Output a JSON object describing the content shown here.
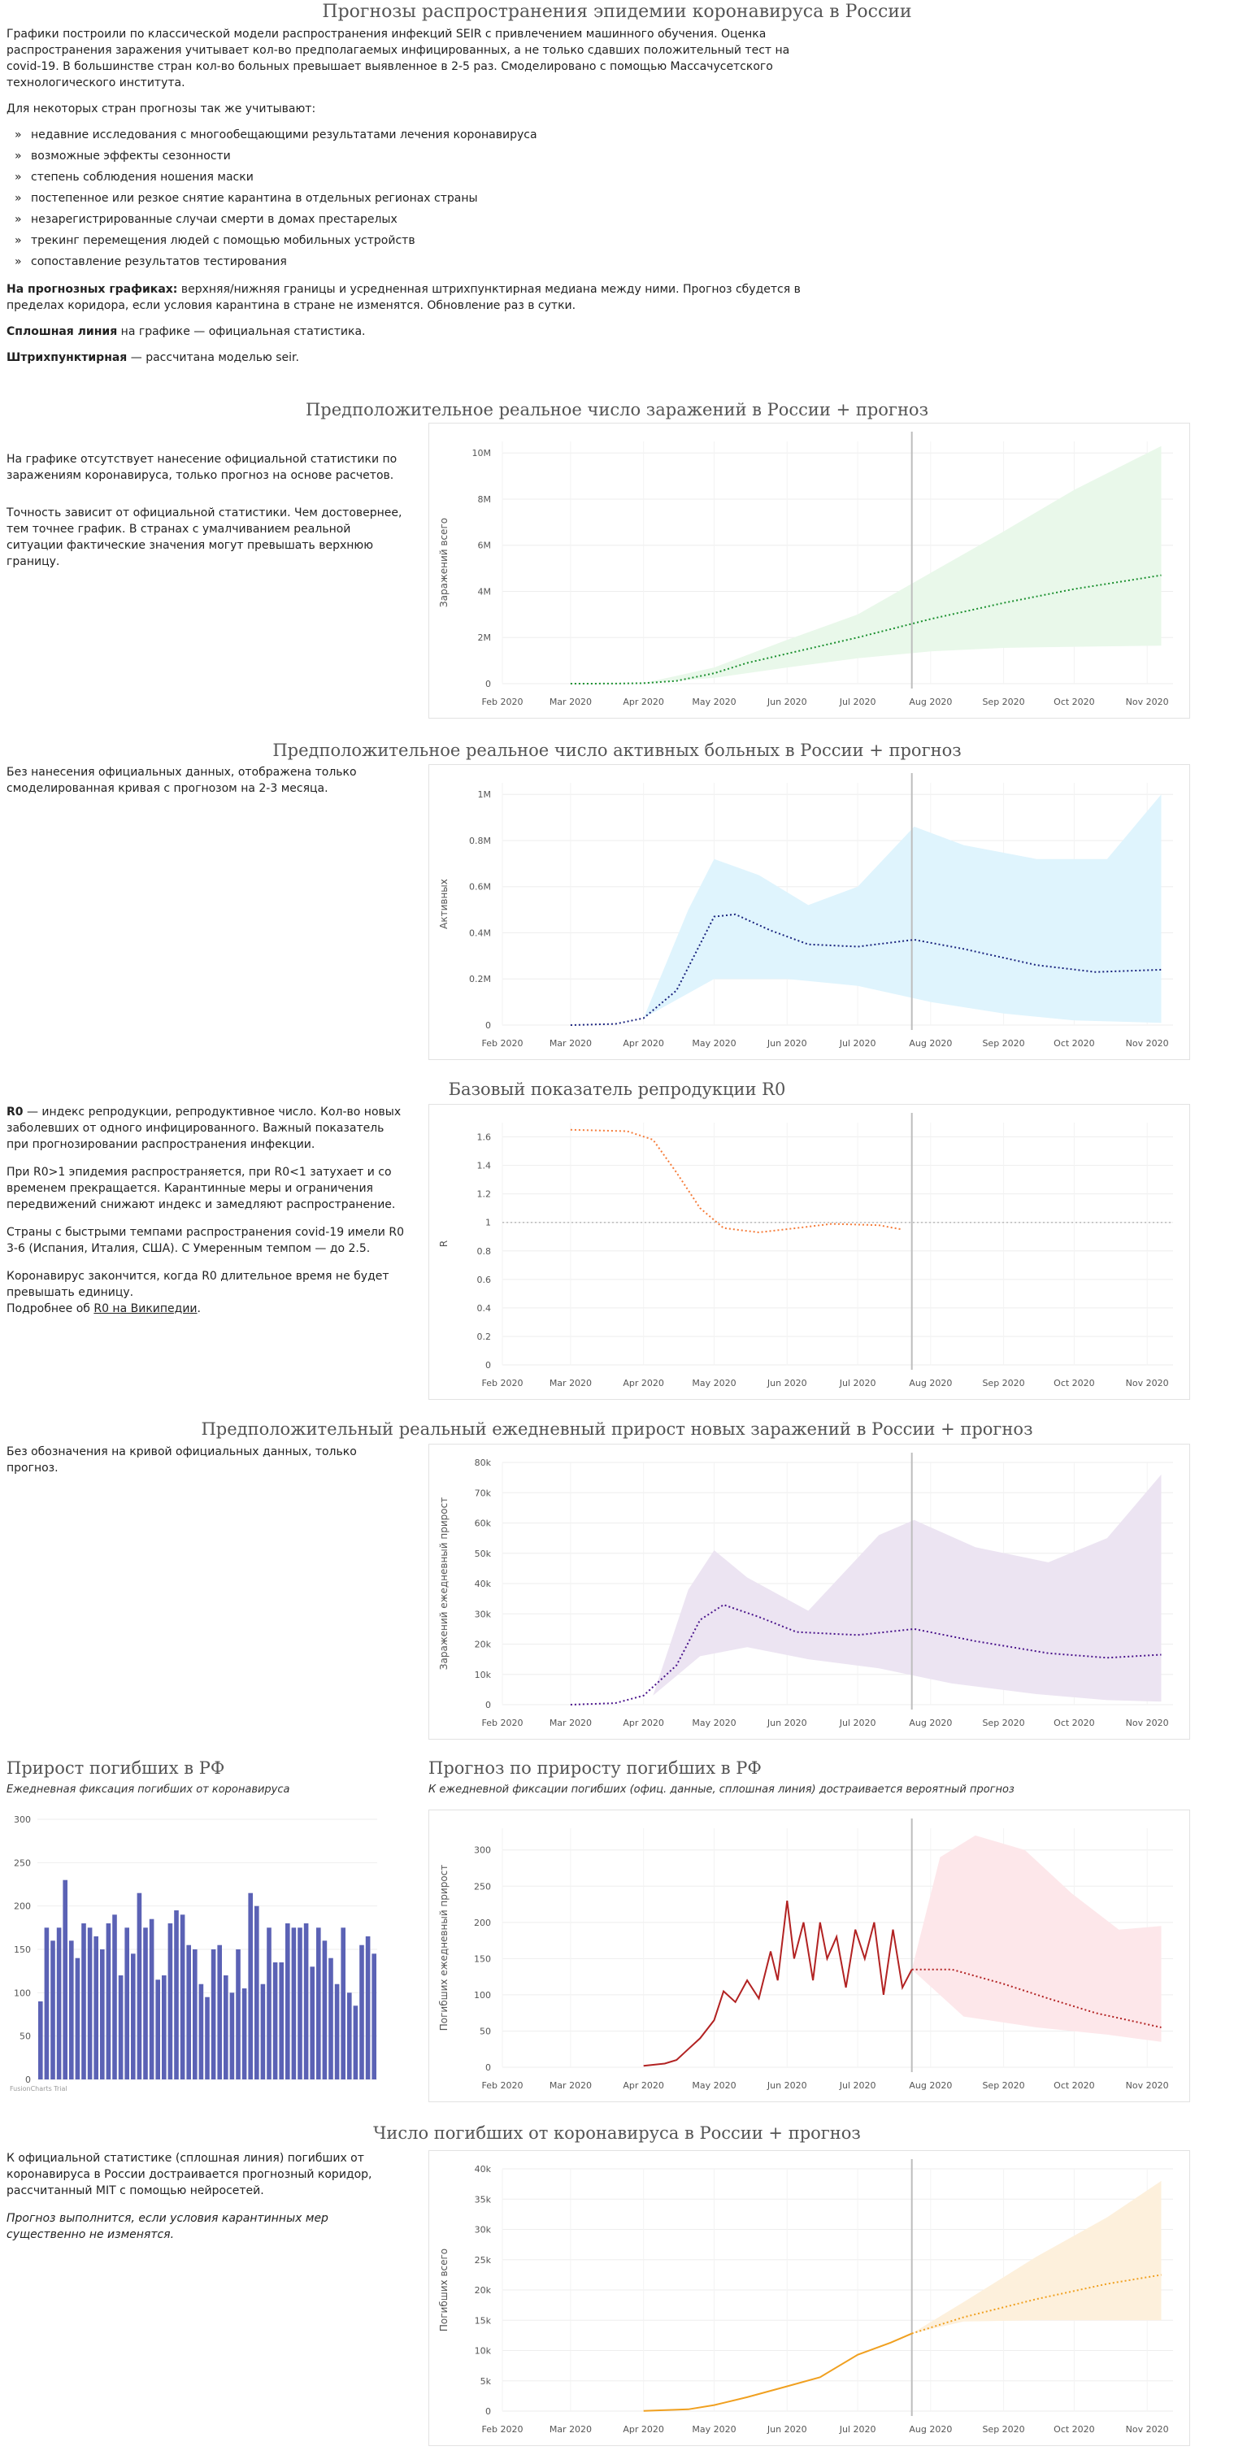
{
  "page_title": "Прогнозы распространения эпидемии коронавируса в России",
  "intro": {
    "p1": "Графики построили по классической модели распространения инфекций SEIR с привлечением машинного обучения. Оценка распространения заражения учитывает кол-во предполагаемых инфицированных, а не только сдавших положительный тест на covid-19. В большинстве стран кол-во больных превышает выявленное в 2-5 раз. Смоделировано с помощью Массачусетского технологического института.",
    "p2": "Для некоторых стран прогнозы так же учитывают:",
    "bullets": [
      "недавние исследования с многообещающими результатами лечения коронавируса",
      "возможные эффекты сезонности",
      "степень соблюдения ношения маски",
      "постепенное или резкое снятие карантина в отдельных регионах страны",
      "незарегистрированные случаи смерти в домах престарелых",
      "трекинг перемещения людей с помощью мобильных устройств",
      "сопоставление результатов тестирования"
    ],
    "p3_bold": "На прогнозных графиках:",
    "p3_rest": " верхняя/нижняя границы и усредненная штрихпунктирная медиана между ними. Прогноз сбудется в пределах коридора, если условия карантина в стране не изменятся. Обновление раз в сутки.",
    "p4_bold": "Сплошная линия",
    "p4_rest": " на графике — официальная статистика.",
    "p5_bold": "Штрихпунктирная",
    "p5_rest": " — рассчитана моделью seir."
  },
  "sections": {
    "s1_title": "Предположительное реальное число заражений в России + прогноз",
    "s1_p1": "На графике отсутствует нанесение официальной статистики по заражениям коронавируса, только прогноз на основе расчетов.",
    "s1_p2": "Точность зависит от официальной статистики. Чем достовернее, тем точнее график. В странах с умалчиванием реальной ситуации фактические значения могут превышать верхнюю границу.",
    "s2_title": "Предположительное реальное число активных больных в России + прогноз",
    "s2_p1": "Без нанесения официальных данных, отображена только смоделированная кривая с прогнозом на 2-3 месяца.",
    "s3_title": "Базовый показатель репродукции R0",
    "s3_p1_bold": "R0",
    "s3_p1_rest": " — индекс репродукции, репродуктивное число. Кол-во новых заболевших от одного инфицированного. Важный показатель при прогнозировании распространения инфекции.",
    "s3_p2": "При R0>1 эпидемия распространяется, при R0<1 затухает и со временем прекращается. Карантинные меры и ограничения передвижений снижают индекс и замедляют распространение.",
    "s3_p3": "Страны с быстрыми темпами распространения covid-19 имели R0 3-6 (Испания, Италия, США). С Умеренным темпом — до 2.5.",
    "s3_p4": "Коронавирус закончится, когда R0 длительное время не будет превышать единицу.",
    "s3_p5_prefix": "Подробнее об ",
    "s3_link": "R0 на Википедии",
    "s3_p5_suffix": ".",
    "s4_title": "Предположительный реальный ежедневный прирост новых заражений в России + прогноз",
    "s4_p1": "Без обозначения на кривой официальных данных, только прогноз.",
    "s5_left_title": "Прирост погибших в РФ",
    "s5_left_sub": "Ежедневная фиксация погибших от коронавируса",
    "s5_right_title": "Прогноз по приросту погибших в РФ",
    "s5_right_sub": "К ежедневной фиксации погибших (офиц. данные, сплошная линия) достраивается вероятный прогноз",
    "s6_title": "Число погибших от коронавируса в России + прогноз",
    "s6_p1": "К официальной статистике (сплошная линия) погибших от коронавируса в России достраивается прогнозный коридор, рассчитанный MIT с помощью нейросетей.",
    "s6_p2": "Прогноз выполнится, если условия карантинных мер существенно не изменятся."
  },
  "colors": {
    "infections": "#1a8f2e",
    "infections_band": "#e9f8ea",
    "active": "#1a237e",
    "active_band": "#dff4fd",
    "r0": "#f57c3a",
    "daily": "#4a148c",
    "daily_band": "#ece4f2",
    "deaths_daily": "#b22222",
    "deaths_band": "#fde7ea",
    "bars": "#5b62b5",
    "deaths_total": "#f0a020",
    "deaths_total_band": "#fdf0dc",
    "today_line": "#bdbdbd"
  },
  "chart_data": [
    {
      "id": "infections",
      "type": "area",
      "ylabel": "Заражений всего",
      "x_ticks": [
        "Feb 2020",
        "Mar 2020",
        "Apr 2020",
        "May 2020",
        "Jun 2020",
        "Jul 2020",
        "Aug 2020",
        "Sep 2020",
        "Oct 2020",
        "Nov 2020"
      ],
      "y_ticks": [
        "0",
        "2M",
        "4M",
        "6M",
        "8M",
        "10M"
      ],
      "ylim": [
        0,
        10500000
      ],
      "today": "2020-07-24",
      "median": [
        [
          "2020-03-01",
          0
        ],
        [
          "2020-03-20",
          5000
        ],
        [
          "2020-04-01",
          20000
        ],
        [
          "2020-04-15",
          120000
        ],
        [
          "2020-05-01",
          450000
        ],
        [
          "2020-05-15",
          900000
        ],
        [
          "2020-06-01",
          1300000
        ],
        [
          "2020-07-01",
          2000000
        ],
        [
          "2020-08-01",
          2800000
        ],
        [
          "2020-09-01",
          3500000
        ],
        [
          "2020-10-01",
          4100000
        ],
        [
          "2020-11-01",
          4600000
        ],
        [
          "2020-11-07",
          4700000
        ]
      ],
      "lower": [
        [
          "2020-04-01",
          20000
        ],
        [
          "2020-05-01",
          250000
        ],
        [
          "2020-06-01",
          700000
        ],
        [
          "2020-07-01",
          1100000
        ],
        [
          "2020-08-01",
          1400000
        ],
        [
          "2020-09-01",
          1550000
        ],
        [
          "2020-10-01",
          1600000
        ],
        [
          "2020-11-07",
          1650000
        ]
      ],
      "upper": [
        [
          "2020-04-01",
          20000
        ],
        [
          "2020-05-01",
          700000
        ],
        [
          "2020-06-01",
          1900000
        ],
        [
          "2020-07-01",
          3000000
        ],
        [
          "2020-08-01",
          4800000
        ],
        [
          "2020-09-01",
          6600000
        ],
        [
          "2020-10-01",
          8400000
        ],
        [
          "2020-11-07",
          10300000
        ]
      ]
    },
    {
      "id": "active",
      "type": "area",
      "ylabel": "Активных",
      "x_ticks": [
        "Feb 2020",
        "Mar 2020",
        "Apr 2020",
        "May 2020",
        "Jun 2020",
        "Jul 2020",
        "Aug 2020",
        "Sep 2020",
        "Oct 2020",
        "Nov 2020"
      ],
      "y_ticks": [
        "0",
        "0.2M",
        "0.4M",
        "0.6M",
        "0.8M",
        "1M"
      ],
      "ylim": [
        0,
        1050000
      ],
      "today": "2020-07-24",
      "median": [
        [
          "2020-03-01",
          0
        ],
        [
          "2020-03-20",
          5000
        ],
        [
          "2020-04-01",
          30000
        ],
        [
          "2020-04-15",
          150000
        ],
        [
          "2020-05-01",
          470000
        ],
        [
          "2020-05-10",
          480000
        ],
        [
          "2020-05-25",
          410000
        ],
        [
          "2020-06-10",
          350000
        ],
        [
          "2020-07-01",
          340000
        ],
        [
          "2020-07-25",
          370000
        ],
        [
          "2020-08-15",
          330000
        ],
        [
          "2020-09-15",
          260000
        ],
        [
          "2020-10-10",
          230000
        ],
        [
          "2020-11-07",
          240000
        ]
      ],
      "lower": [
        [
          "2020-04-01",
          30000
        ],
        [
          "2020-05-01",
          200000
        ],
        [
          "2020-06-01",
          200000
        ],
        [
          "2020-07-01",
          170000
        ],
        [
          "2020-08-01",
          100000
        ],
        [
          "2020-09-01",
          50000
        ],
        [
          "2020-10-01",
          20000
        ],
        [
          "2020-11-07",
          10000
        ]
      ],
      "upper": [
        [
          "2020-04-01",
          30000
        ],
        [
          "2020-04-20",
          500000
        ],
        [
          "2020-05-01",
          720000
        ],
        [
          "2020-05-20",
          650000
        ],
        [
          "2020-06-10",
          520000
        ],
        [
          "2020-07-01",
          600000
        ],
        [
          "2020-07-25",
          860000
        ],
        [
          "2020-08-15",
          780000
        ],
        [
          "2020-09-15",
          720000
        ],
        [
          "2020-10-15",
          720000
        ],
        [
          "2020-11-07",
          1000000
        ]
      ]
    },
    {
      "id": "r0",
      "type": "line",
      "ylabel": "R",
      "x_ticks": [
        "Feb 2020",
        "Mar 2020",
        "Apr 2020",
        "May 2020",
        "Jun 2020",
        "Jul 2020",
        "Aug 2020",
        "Sep 2020",
        "Oct 2020",
        "Nov 2020"
      ],
      "y_ticks": [
        "0",
        "0.2",
        "0.4",
        "0.6",
        "0.8",
        "1",
        "1.2",
        "1.4",
        "1.6"
      ],
      "ylim": [
        0,
        1.7
      ],
      "today": "2020-07-24",
      "reference_line": 1,
      "median": [
        [
          "2020-03-01",
          1.65
        ],
        [
          "2020-03-25",
          1.64
        ],
        [
          "2020-04-05",
          1.58
        ],
        [
          "2020-04-15",
          1.35
        ],
        [
          "2020-04-25",
          1.1
        ],
        [
          "2020-05-05",
          0.96
        ],
        [
          "2020-05-20",
          0.93
        ],
        [
          "2020-06-05",
          0.96
        ],
        [
          "2020-06-20",
          0.99
        ],
        [
          "2020-07-10",
          0.98
        ],
        [
          "2020-07-20",
          0.95
        ]
      ]
    },
    {
      "id": "daily_new",
      "type": "area",
      "ylabel": "Заражений ежедневный прирост",
      "x_ticks": [
        "Feb 2020",
        "Mar 2020",
        "Apr 2020",
        "May 2020",
        "Jun 2020",
        "Jul 2020",
        "Aug 2020",
        "Sep 2020",
        "Oct 2020",
        "Nov 2020"
      ],
      "y_ticks": [
        "0",
        "10k",
        "20k",
        "30k",
        "40k",
        "50k",
        "60k",
        "70k",
        "80k"
      ],
      "ylim": [
        0,
        80000
      ],
      "today": "2020-07-24",
      "median": [
        [
          "2020-03-01",
          0
        ],
        [
          "2020-03-20",
          500
        ],
        [
          "2020-04-01",
          3000
        ],
        [
          "2020-04-15",
          13000
        ],
        [
          "2020-04-25",
          28000
        ],
        [
          "2020-05-05",
          33000
        ],
        [
          "2020-05-20",
          29000
        ],
        [
          "2020-06-05",
          24000
        ],
        [
          "2020-07-01",
          23000
        ],
        [
          "2020-07-25",
          25000
        ],
        [
          "2020-08-20",
          21000
        ],
        [
          "2020-09-20",
          17000
        ],
        [
          "2020-10-15",
          15500
        ],
        [
          "2020-11-07",
          16500
        ]
      ],
      "lower": [
        [
          "2020-04-05",
          3000
        ],
        [
          "2020-04-25",
          16000
        ],
        [
          "2020-05-15",
          19000
        ],
        [
          "2020-06-10",
          15000
        ],
        [
          "2020-07-10",
          12000
        ],
        [
          "2020-08-10",
          7000
        ],
        [
          "2020-09-15",
          3500
        ],
        [
          "2020-10-15",
          1500
        ],
        [
          "2020-11-07",
          1000
        ]
      ],
      "upper": [
        [
          "2020-04-05",
          3000
        ],
        [
          "2020-04-20",
          38000
        ],
        [
          "2020-05-01",
          51000
        ],
        [
          "2020-05-15",
          42000
        ],
        [
          "2020-06-10",
          31000
        ],
        [
          "2020-07-10",
          56000
        ],
        [
          "2020-07-25",
          61000
        ],
        [
          "2020-08-20",
          52000
        ],
        [
          "2020-09-20",
          47000
        ],
        [
          "2020-10-15",
          55000
        ],
        [
          "2020-11-07",
          76000
        ]
      ]
    },
    {
      "id": "deaths_daily_bars",
      "type": "bar",
      "y_ticks": [
        "0",
        "50",
        "100",
        "150",
        "200",
        "250",
        "300"
      ],
      "ylim": [
        0,
        300
      ],
      "watermark": "FusionCharts Trial",
      "values": [
        90,
        175,
        160,
        175,
        230,
        160,
        140,
        180,
        175,
        165,
        150,
        180,
        190,
        120,
        175,
        145,
        215,
        175,
        185,
        115,
        120,
        180,
        195,
        190,
        155,
        150,
        110,
        95,
        150,
        155,
        120,
        100,
        150,
        105,
        215,
        200,
        110,
        175,
        135,
        135,
        180,
        175,
        175,
        180,
        130,
        175,
        160,
        140,
        110,
        175,
        100,
        85,
        155,
        165,
        145
      ]
    },
    {
      "id": "deaths_daily_forecast",
      "type": "line",
      "ylabel": "Погибших ежедневный прирост",
      "x_ticks": [
        "Feb 2020",
        "Mar 2020",
        "Apr 2020",
        "May 2020",
        "Jun 2020",
        "Jul 2020",
        "Aug 2020",
        "Sep 2020",
        "Oct 2020",
        "Nov 2020"
      ],
      "y_ticks": [
        "0",
        "50",
        "100",
        "150",
        "200",
        "250",
        "300"
      ],
      "ylim": [
        0,
        330
      ],
      "today": "2020-07-24",
      "official": [
        [
          "2020-04-01",
          2
        ],
        [
          "2020-04-10",
          5
        ],
        [
          "2020-04-15",
          10
        ],
        [
          "2020-04-20",
          25
        ],
        [
          "2020-04-25",
          40
        ],
        [
          "2020-05-01",
          65
        ],
        [
          "2020-05-05",
          105
        ],
        [
          "2020-05-10",
          90
        ],
        [
          "2020-05-15",
          120
        ],
        [
          "2020-05-20",
          95
        ],
        [
          "2020-05-25",
          160
        ],
        [
          "2020-05-28",
          120
        ],
        [
          "2020-06-01",
          230
        ],
        [
          "2020-06-04",
          150
        ],
        [
          "2020-06-08",
          200
        ],
        [
          "2020-06-12",
          120
        ],
        [
          "2020-06-15",
          200
        ],
        [
          "2020-06-18",
          150
        ],
        [
          "2020-06-22",
          180
        ],
        [
          "2020-06-26",
          110
        ],
        [
          "2020-06-30",
          190
        ],
        [
          "2020-07-04",
          150
        ],
        [
          "2020-07-08",
          200
        ],
        [
          "2020-07-12",
          100
        ],
        [
          "2020-07-16",
          190
        ],
        [
          "2020-07-20",
          110
        ],
        [
          "2020-07-24",
          135
        ]
      ],
      "median": [
        [
          "2020-07-24",
          135
        ],
        [
          "2020-08-10",
          135
        ],
        [
          "2020-09-01",
          115
        ],
        [
          "2020-09-20",
          95
        ],
        [
          "2020-10-10",
          75
        ],
        [
          "2020-11-07",
          55
        ]
      ],
      "lower": [
        [
          "2020-07-24",
          135
        ],
        [
          "2020-08-15",
          70
        ],
        [
          "2020-09-15",
          55
        ],
        [
          "2020-10-15",
          45
        ],
        [
          "2020-11-07",
          35
        ]
      ],
      "upper": [
        [
          "2020-07-24",
          135
        ],
        [
          "2020-08-05",
          290
        ],
        [
          "2020-08-20",
          320
        ],
        [
          "2020-09-10",
          300
        ],
        [
          "2020-09-30",
          240
        ],
        [
          "2020-10-20",
          190
        ],
        [
          "2020-11-07",
          195
        ]
      ]
    },
    {
      "id": "deaths_total",
      "type": "area",
      "ylabel": "Погибших всего",
      "x_ticks": [
        "Feb 2020",
        "Mar 2020",
        "Apr 2020",
        "May 2020",
        "Jun 2020",
        "Jul 2020",
        "Aug 2020",
        "Sep 2020",
        "Oct 2020",
        "Nov 2020"
      ],
      "y_ticks": [
        "0",
        "5k",
        "10k",
        "15k",
        "20k",
        "25k",
        "30k",
        "35k",
        "40k"
      ],
      "ylim": [
        0,
        40000
      ],
      "today": "2020-07-24",
      "official": [
        [
          "2020-04-01",
          30
        ],
        [
          "2020-04-20",
          300
        ],
        [
          "2020-05-01",
          1000
        ],
        [
          "2020-05-15",
          2300
        ],
        [
          "2020-06-01",
          4100
        ],
        [
          "2020-06-15",
          5600
        ],
        [
          "2020-07-01",
          9300
        ],
        [
          "2020-07-15",
          11300
        ],
        [
          "2020-07-24",
          12800
        ]
      ],
      "median": [
        [
          "2020-07-24",
          12800
        ],
        [
          "2020-08-15",
          15500
        ],
        [
          "2020-09-15",
          18500
        ],
        [
          "2020-10-15",
          21000
        ],
        [
          "2020-11-07",
          22500
        ]
      ],
      "lower": [
        [
          "2020-07-24",
          12800
        ],
        [
          "2020-08-15",
          14800
        ],
        [
          "2020-09-15",
          15000
        ],
        [
          "2020-11-07",
          15000
        ]
      ],
      "upper": [
        [
          "2020-07-24",
          12800
        ],
        [
          "2020-08-15",
          18000
        ],
        [
          "2020-09-15",
          25500
        ],
        [
          "2020-10-15",
          32000
        ],
        [
          "2020-11-07",
          38000
        ]
      ]
    }
  ]
}
